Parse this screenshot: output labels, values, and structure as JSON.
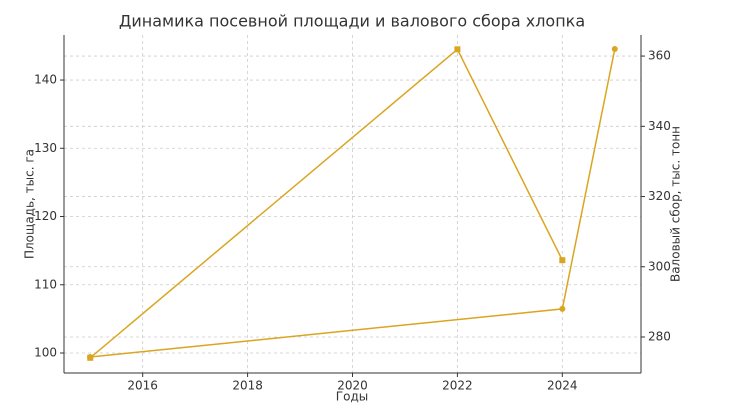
{
  "chart_data": {
    "type": "line",
    "title": "Динамика посевной площади и валового сбора хлопка",
    "x_label": "Годы",
    "y_label": "Площадь, тыс. га",
    "y2_label": "Валовый сбор, тыс. тонн",
    "xlim": [
      2014.5,
      2025.5
    ],
    "xticks": [
      2016,
      2018,
      2020,
      2022,
      2024
    ],
    "ylim": [
      97.07,
      146.6
    ],
    "yticks": [
      100,
      110,
      120,
      130,
      140
    ],
    "y2lim": [
      269.75,
      366
    ],
    "y2ticks": [
      280,
      300,
      320,
      340,
      360
    ],
    "grid": true,
    "series": [
      {
        "color": "#daa520",
        "marker": "square",
        "axis": "y",
        "x": [
          2015,
          2022,
          2024
        ],
        "values": [
          99.3,
          144.5,
          113.6
        ]
      },
      {
        "color": "#daa520",
        "marker": "circle",
        "axis": "y2",
        "x": [
          2015,
          2024,
          2025
        ],
        "values": [
          274.3,
          288,
          362
        ]
      }
    ]
  }
}
